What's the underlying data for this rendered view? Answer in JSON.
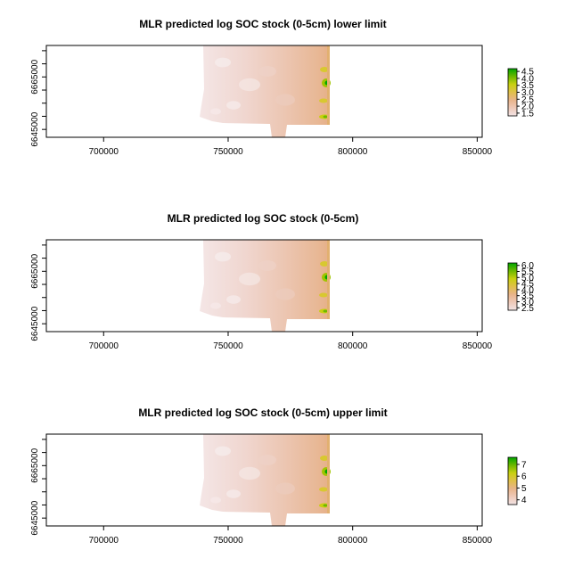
{
  "chart_data": [
    {
      "type": "heatmap",
      "title": "MLR predicted log SOC stock (0-5cm) lower limit",
      "x_ticks": [
        700000,
        750000,
        800000,
        850000
      ],
      "y_ticks": [
        6645000,
        6665000
      ],
      "legend_ticks": [
        "1.5",
        "2.0",
        "2.5",
        "3.0",
        "3.5",
        "4.0",
        "4.5"
      ],
      "legend_range": [
        1.3,
        4.7
      ],
      "xlabel": "",
      "ylabel": ""
    },
    {
      "type": "heatmap",
      "title": "MLR predicted log SOC stock (0-5cm)",
      "x_ticks": [
        700000,
        750000,
        800000,
        850000
      ],
      "y_ticks": [
        6645000,
        6665000
      ],
      "legend_ticks": [
        "2.5",
        "3.0",
        "3.5",
        "4.0",
        "4.5",
        "5.0",
        "5.5",
        "6.0"
      ],
      "legend_range": [
        2.3,
        6.2
      ],
      "xlabel": "",
      "ylabel": ""
    },
    {
      "type": "heatmap",
      "title": "MLR predicted log SOC stock (0-5cm) upper limit",
      "x_ticks": [
        700000,
        750000,
        800000,
        850000
      ],
      "y_ticks": [
        6645000,
        6665000
      ],
      "legend_ticks": [
        "4",
        "5",
        "6",
        "7"
      ],
      "legend_range": [
        3.6,
        7.6
      ],
      "xlabel": "",
      "ylabel": ""
    }
  ],
  "colors": {
    "ramp": [
      "#f2e4e4",
      "#eec9b8",
      "#e8b48a",
      "#e0c04a",
      "#c8d010",
      "#6cb800",
      "#00a600"
    ]
  }
}
